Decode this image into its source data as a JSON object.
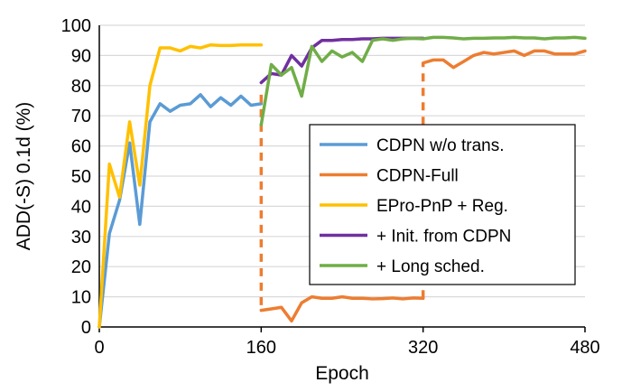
{
  "chart_data": {
    "type": "line",
    "xlabel": "Epoch",
    "ylabel": "ADD(-S) 0.1d (%)",
    "xlim": [
      0,
      480
    ],
    "ylim": [
      0,
      100
    ],
    "x_ticks": [
      0,
      160,
      320,
      480
    ],
    "y_ticks": [
      0,
      10,
      20,
      30,
      40,
      50,
      60,
      70,
      80,
      90,
      100
    ],
    "grid": "horizontal",
    "legend_position": "center-right",
    "series": [
      {
        "name": "CDPN w/o trans.",
        "color": "#5b9bd5",
        "style": "solid",
        "points": [
          [
            0,
            0
          ],
          [
            10,
            31
          ],
          [
            20,
            42
          ],
          [
            30,
            61
          ],
          [
            40,
            34
          ],
          [
            50,
            68
          ],
          [
            60,
            74
          ],
          [
            70,
            71.5
          ],
          [
            80,
            73.5
          ],
          [
            90,
            74
          ],
          [
            100,
            77
          ],
          [
            110,
            73
          ],
          [
            120,
            76
          ],
          [
            130,
            73.5
          ],
          [
            140,
            76.5
          ],
          [
            150,
            73.5
          ],
          [
            160,
            74
          ]
        ]
      },
      {
        "name": "CDPN-Full",
        "color": "#ed7d31",
        "style": "mixed",
        "points": [
          [
            160,
            77
          ],
          [
            160,
            5.5
          ],
          [
            170,
            6
          ],
          [
            180,
            6.5
          ],
          [
            190,
            2
          ],
          [
            200,
            8
          ],
          [
            210,
            10
          ],
          [
            220,
            9.5
          ],
          [
            230,
            9.5
          ],
          [
            240,
            10
          ],
          [
            250,
            9.5
          ],
          [
            260,
            9.5
          ],
          [
            270,
            9.3
          ],
          [
            280,
            9.4
          ],
          [
            290,
            9.6
          ],
          [
            300,
            9.3
          ],
          [
            310,
            9.6
          ],
          [
            320,
            9.5
          ],
          [
            320,
            87.5
          ],
          [
            330,
            88.5
          ],
          [
            340,
            88.5
          ],
          [
            350,
            86
          ],
          [
            360,
            88
          ],
          [
            370,
            90
          ],
          [
            380,
            91
          ],
          [
            390,
            90.5
          ],
          [
            400,
            91
          ],
          [
            410,
            91.5
          ],
          [
            420,
            90
          ],
          [
            430,
            91.5
          ],
          [
            440,
            91.5
          ],
          [
            450,
            90.5
          ],
          [
            460,
            90.5
          ],
          [
            470,
            90.5
          ],
          [
            480,
            91.5
          ]
        ],
        "dashed_segments": [
          [
            0,
            1
          ],
          [
            17,
            18
          ]
        ]
      },
      {
        "name": "EPro-PnP + Reg.",
        "color": "#ffc000",
        "style": "solid",
        "points": [
          [
            0,
            0
          ],
          [
            10,
            54
          ],
          [
            20,
            43
          ],
          [
            30,
            68
          ],
          [
            40,
            47
          ],
          [
            50,
            80
          ],
          [
            60,
            92.5
          ],
          [
            70,
            92.5
          ],
          [
            80,
            91.5
          ],
          [
            90,
            93
          ],
          [
            100,
            92.5
          ],
          [
            110,
            93.5
          ],
          [
            120,
            93.3
          ],
          [
            130,
            93.3
          ],
          [
            140,
            93.5
          ],
          [
            150,
            93.5
          ],
          [
            160,
            93.5
          ]
        ]
      },
      {
        "name": "+ Init. from CDPN",
        "color": "#7030a0",
        "style": "solid",
        "points": [
          [
            160,
            81
          ],
          [
            170,
            84
          ],
          [
            180,
            83.5
          ],
          [
            190,
            90
          ],
          [
            200,
            86.5
          ],
          [
            210,
            92.5
          ],
          [
            220,
            95
          ],
          [
            230,
            95
          ],
          [
            240,
            95.3
          ],
          [
            250,
            95.3
          ],
          [
            260,
            95.5
          ],
          [
            270,
            95.5
          ],
          [
            280,
            95.7
          ],
          [
            290,
            95.7
          ],
          [
            300,
            95.7
          ],
          [
            310,
            95.7
          ],
          [
            320,
            95.7
          ]
        ]
      },
      {
        "name": "+ Long sched.",
        "color": "#70ad47",
        "style": "solid",
        "points": [
          [
            160,
            67
          ],
          [
            170,
            87
          ],
          [
            180,
            83.5
          ],
          [
            190,
            86
          ],
          [
            200,
            76.5
          ],
          [
            210,
            93
          ],
          [
            220,
            88
          ],
          [
            230,
            91.5
          ],
          [
            240,
            89.5
          ],
          [
            250,
            91
          ],
          [
            260,
            88
          ],
          [
            270,
            95
          ],
          [
            280,
            95.5
          ],
          [
            290,
            95
          ],
          [
            300,
            95.5
          ],
          [
            310,
            95.7
          ],
          [
            320,
            95.5
          ],
          [
            330,
            96
          ],
          [
            340,
            96
          ],
          [
            350,
            95.8
          ],
          [
            360,
            95.5
          ],
          [
            370,
            95.7
          ],
          [
            380,
            95.7
          ],
          [
            390,
            95.8
          ],
          [
            400,
            95.8
          ],
          [
            410,
            96
          ],
          [
            420,
            95.8
          ],
          [
            430,
            95.8
          ],
          [
            440,
            95.5
          ],
          [
            450,
            95.8
          ],
          [
            460,
            95.8
          ],
          [
            470,
            96
          ],
          [
            480,
            95.7
          ]
        ]
      }
    ]
  }
}
